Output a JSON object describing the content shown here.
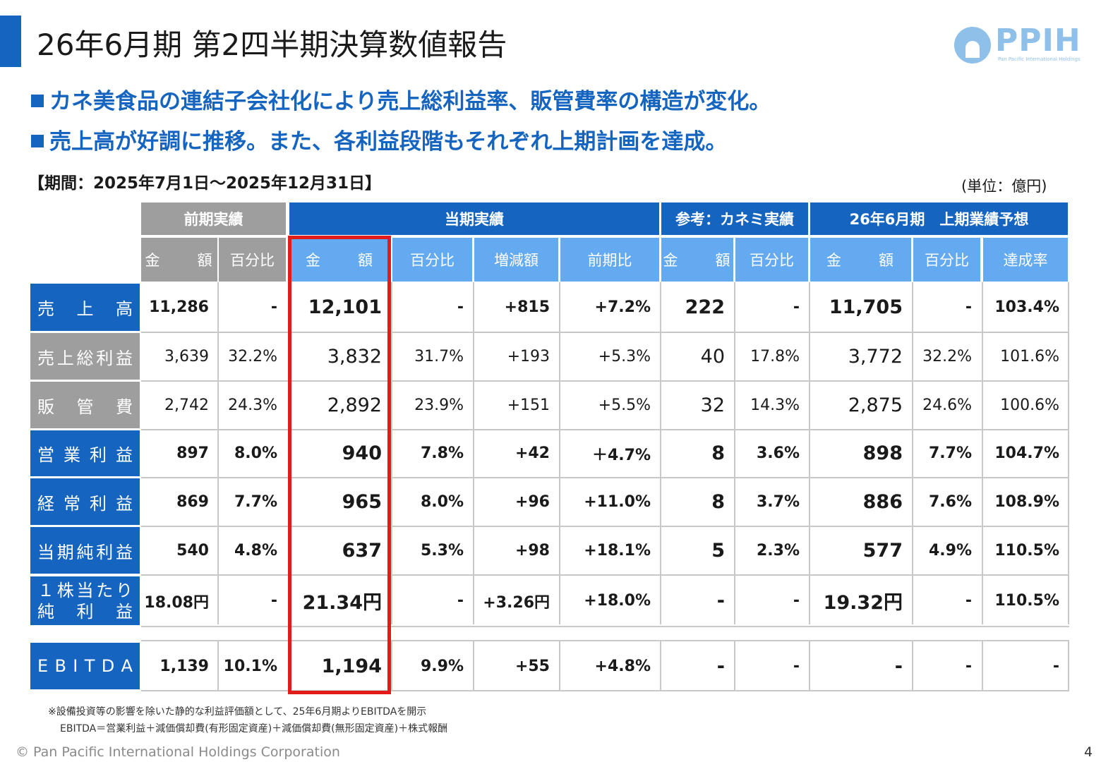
{
  "title": "26年6月期 第2四半期決算数値報告",
  "logo": {
    "text": "PPIH",
    "subtext": "Pan Pacific International Holdings"
  },
  "bullets": [
    "カネ美食品の連結子会社化により売上総利益率、販管費率の構造が変化。",
    "売上高が好調に推移。また、各利益段階もそれぞれ上期計画を達成。"
  ],
  "period": "【期間：2025年7月1日～2025年12月31日】",
  "unit": "(単位：億円)",
  "groups": [
    "前期実績",
    "当期実績",
    "参考：カネミ実績",
    "26年6月期　上期業績予想"
  ],
  "subheaders": [
    "金　額",
    "百分比",
    "金　額",
    "百分比",
    "増減額",
    "前期比",
    "金　額",
    "百分比",
    "金　額",
    "百分比",
    "達成率"
  ],
  "rows": [
    {
      "label": [
        "売",
        "上",
        "高"
      ],
      "cells": [
        "11,286",
        "-",
        "12,101",
        "-",
        "+815",
        "+7.2%",
        "222",
        "-",
        "11,705",
        "-",
        "103.4%"
      ]
    },
    {
      "label": [
        "売",
        "上",
        "総",
        "利",
        "益"
      ],
      "cells": [
        "3,639",
        "32.2%",
        "3,832",
        "31.7%",
        "+193",
        "+5.3%",
        "40",
        "17.8%",
        "3,772",
        "32.2%",
        "101.6%"
      ]
    },
    {
      "label": [
        "販",
        "管",
        "費"
      ],
      "cells": [
        "2,742",
        "24.3%",
        "2,892",
        "23.9%",
        "+151",
        "+5.5%",
        "32",
        "14.3%",
        "2,875",
        "24.6%",
        "100.6%"
      ]
    },
    {
      "label": [
        "営",
        "業",
        "利",
        "益"
      ],
      "cells": [
        "897",
        "8.0%",
        "940",
        "7.8%",
        "+42",
        "＋4.7%",
        "8",
        "3.6%",
        "898",
        "7.7%",
        "104.7%"
      ]
    },
    {
      "label": [
        "経",
        "常",
        "利",
        "益"
      ],
      "cells": [
        "869",
        "7.7%",
        "965",
        "8.0%",
        "+96",
        "+11.0%",
        "8",
        "3.7%",
        "886",
        "7.6%",
        "108.9%"
      ]
    },
    {
      "label": [
        "当",
        "期",
        "純",
        "利",
        "益"
      ],
      "cells": [
        "540",
        "4.8%",
        "637",
        "5.3%",
        "+98",
        "+18.1%",
        "5",
        "2.3%",
        "577",
        "4.9%",
        "110.5%"
      ]
    },
    {
      "label_lines": [
        [
          "１",
          "株",
          "当",
          "た",
          "り"
        ],
        [
          "純",
          "利",
          "益"
        ]
      ],
      "cells": [
        "18.08円",
        "-",
        "21.34円",
        "-",
        "+3.26円",
        "+18.0%",
        "-",
        "-",
        "19.32円",
        "-",
        "110.5%"
      ]
    },
    {
      "label": [
        "E",
        "B",
        "I",
        "T",
        "D",
        "A"
      ],
      "cells": [
        "1,139",
        "10.1%",
        "1,194",
        "9.9%",
        "+55",
        "+4.8%",
        "-",
        "-",
        "-",
        "-",
        "-"
      ]
    }
  ],
  "notes": [
    "※設備投資等の影響を除いた静的な利益評価額として、25年6月期よりEBITDAを開示",
    "EBITDA＝営業利益＋減価償却費(有形固定資産)＋減価償却費(無形固定資産)＋株式報酬"
  ],
  "copyright": "© Pan Pacific International Holdings Corporation",
  "page_number": "4",
  "colors": {
    "blue": "#1565c0",
    "light_blue": "#64aaf0",
    "gray": "#9e9e9e",
    "highlight": "#e21b1b"
  }
}
